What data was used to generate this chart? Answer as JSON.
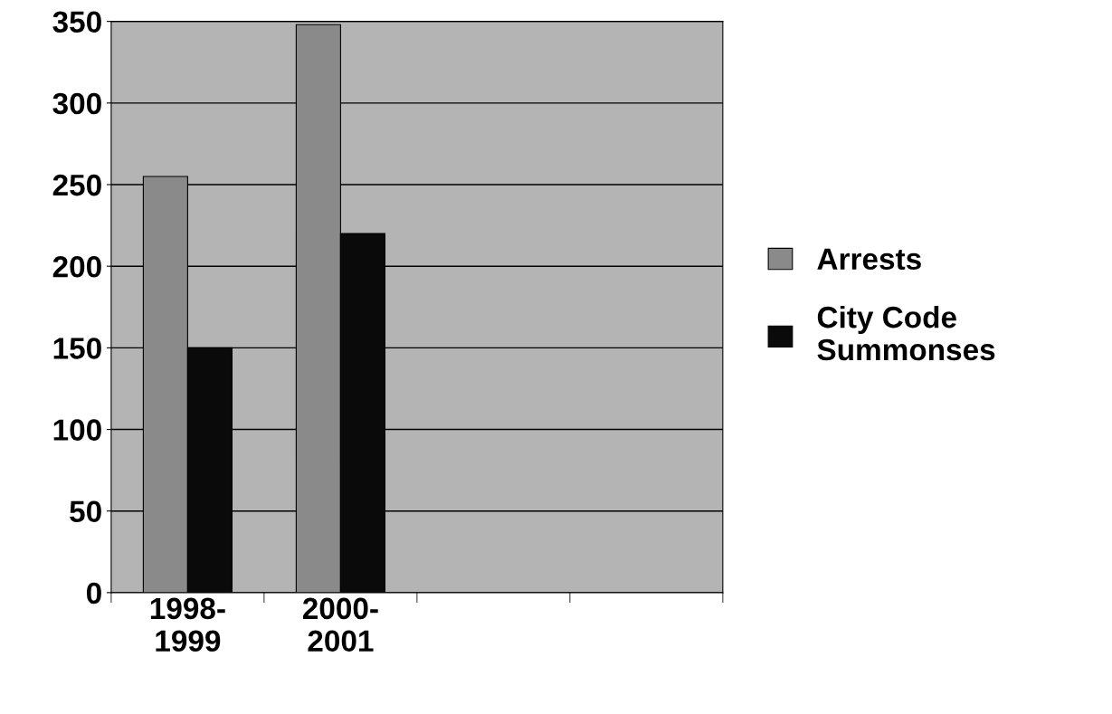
{
  "chart_data": {
    "type": "bar",
    "categories": [
      "1998-\n1999",
      "2000-\n2001",
      null,
      null
    ],
    "series": [
      {
        "name": "Arrests",
        "color": "#8a8a8a",
        "values": [
          255,
          348,
          null,
          null
        ]
      },
      {
        "name": "City Code\nSummonses",
        "color": "#0a0a0a",
        "values": [
          150,
          220,
          null,
          null
        ]
      }
    ],
    "ylim": [
      0,
      350
    ],
    "yticks": [
      0,
      50,
      100,
      150,
      200,
      250,
      300,
      350
    ],
    "grid": "y",
    "legend": "right"
  }
}
